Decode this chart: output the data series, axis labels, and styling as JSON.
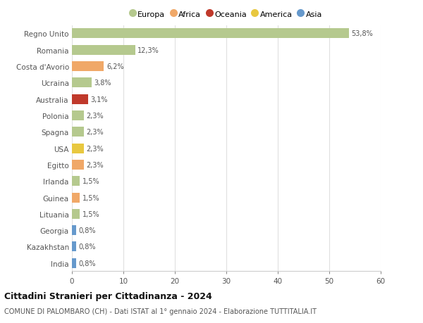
{
  "title": "Cittadini Stranieri per Cittadinanza - 2024",
  "subtitle": "COMUNE DI PALOMBARO (CH) - Dati ISTAT al 1° gennaio 2024 - Elaborazione TUTTITALIA.IT",
  "countries": [
    "Regno Unito",
    "Romania",
    "Costa d'Avorio",
    "Ucraina",
    "Australia",
    "Polonia",
    "Spagna",
    "USA",
    "Egitto",
    "Irlanda",
    "Guinea",
    "Lituania",
    "Georgia",
    "Kazakhstan",
    "India"
  ],
  "values": [
    53.8,
    12.3,
    6.2,
    3.8,
    3.1,
    2.3,
    2.3,
    2.3,
    2.3,
    1.5,
    1.5,
    1.5,
    0.8,
    0.8,
    0.8
  ],
  "labels": [
    "53,8%",
    "12,3%",
    "6,2%",
    "3,8%",
    "3,1%",
    "2,3%",
    "2,3%",
    "2,3%",
    "2,3%",
    "1,5%",
    "1,5%",
    "1,5%",
    "0,8%",
    "0,8%",
    "0,8%"
  ],
  "colors": [
    "#b5c98e",
    "#b5c98e",
    "#f0a868",
    "#b5c98e",
    "#c0392b",
    "#b5c98e",
    "#b5c98e",
    "#e8c840",
    "#f0a868",
    "#b5c98e",
    "#f0a868",
    "#b5c98e",
    "#6699cc",
    "#6699cc",
    "#6699cc"
  ],
  "continent_colors": {
    "Europa": "#b5c98e",
    "Africa": "#f0a868",
    "Oceania": "#c0392b",
    "America": "#e8c840",
    "Asia": "#6699cc"
  },
  "xlim": [
    0,
    60
  ],
  "xticks": [
    0,
    10,
    20,
    30,
    40,
    50,
    60
  ],
  "background_color": "#ffffff",
  "grid_color": "#e0e0e0",
  "bar_height": 0.6
}
